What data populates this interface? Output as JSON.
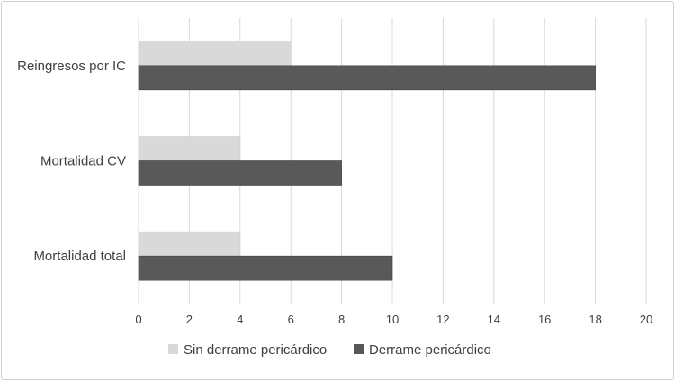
{
  "chart_data": {
    "type": "bar",
    "orientation": "horizontal",
    "title": "",
    "xlabel": "",
    "ylabel": "",
    "categories": [
      "Reingresos por IC",
      "Mortalidad CV",
      "Mortalidad total"
    ],
    "series": [
      {
        "name": "Sin derrame pericárdico",
        "color": "#d9d9d9",
        "values": [
          6,
          4,
          4
        ]
      },
      {
        "name": "Derrame pericárdico",
        "color": "#595959",
        "values": [
          18,
          8,
          10
        ]
      }
    ],
    "xlim": [
      0,
      20
    ],
    "xticks": [
      0,
      2,
      4,
      6,
      8,
      10,
      12,
      14,
      16,
      18,
      20
    ],
    "grid": true,
    "legend_position": "bottom"
  }
}
